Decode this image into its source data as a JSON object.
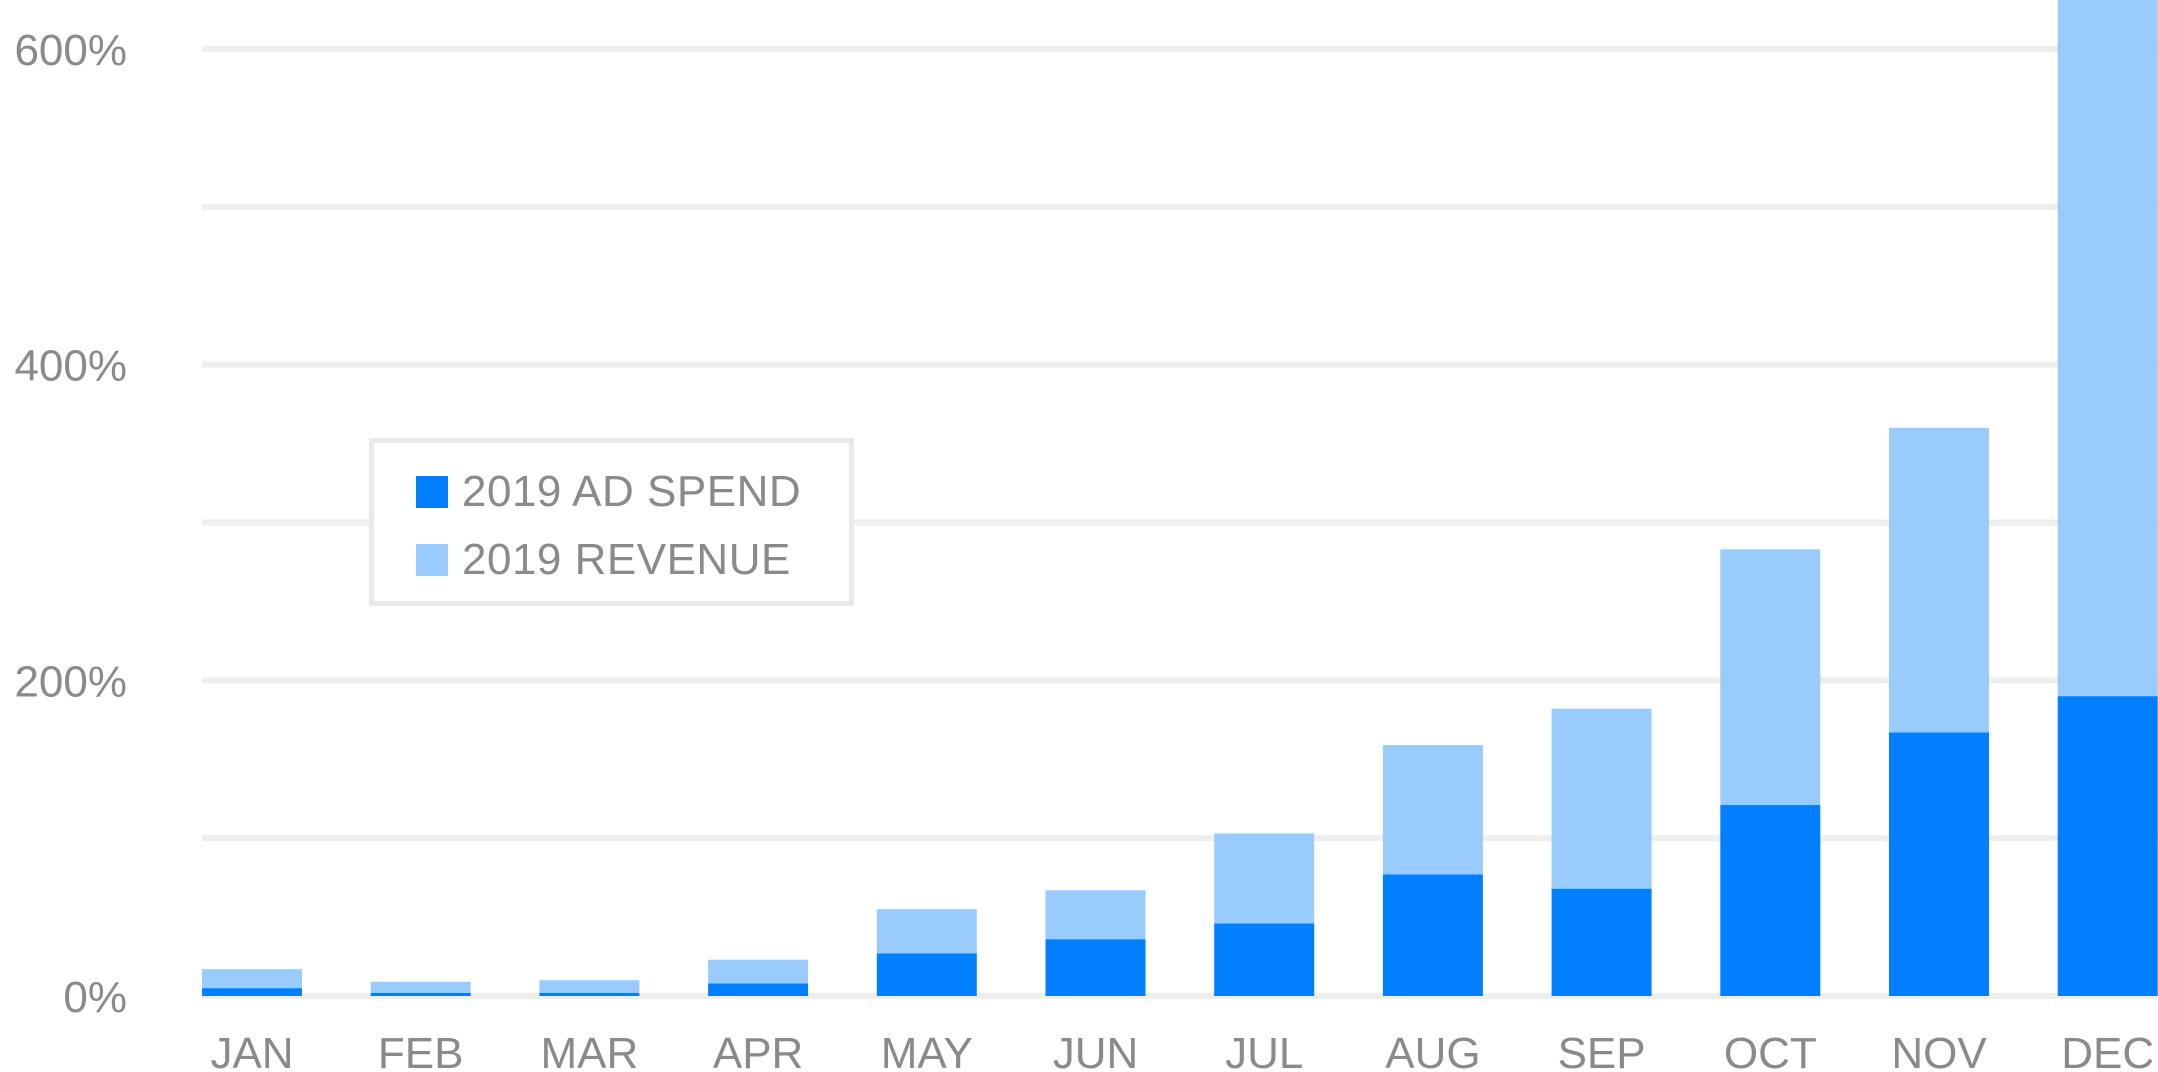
{
  "chart_data": {
    "type": "bar",
    "stacked": true,
    "categories": [
      "JAN",
      "FEB",
      "MAR",
      "APR",
      "MAY",
      "JUN",
      "JUL",
      "AUG",
      "SEP",
      "OCT",
      "NOV",
      "DEC"
    ],
    "series": [
      {
        "name": "2019 AD SPEND",
        "color": "#027ffe",
        "values": [
          5,
          2,
          2,
          8,
          27,
          36,
          46,
          77,
          68,
          121,
          167,
          190
        ]
      },
      {
        "name": "2019 REVENUE",
        "color": "#9acbfd",
        "values": [
          12,
          7,
          8,
          15,
          28,
          31,
          57,
          82,
          114,
          162,
          193,
          443
        ]
      }
    ],
    "title": "",
    "xlabel": "",
    "ylabel": "",
    "ylim": [
      0,
      600
    ],
    "y_ticks": [
      0,
      200,
      400,
      600
    ],
    "y_tick_labels": [
      "0%",
      "200%",
      "400%",
      "600%"
    ],
    "grid": true,
    "legend_position": "center-left"
  }
}
